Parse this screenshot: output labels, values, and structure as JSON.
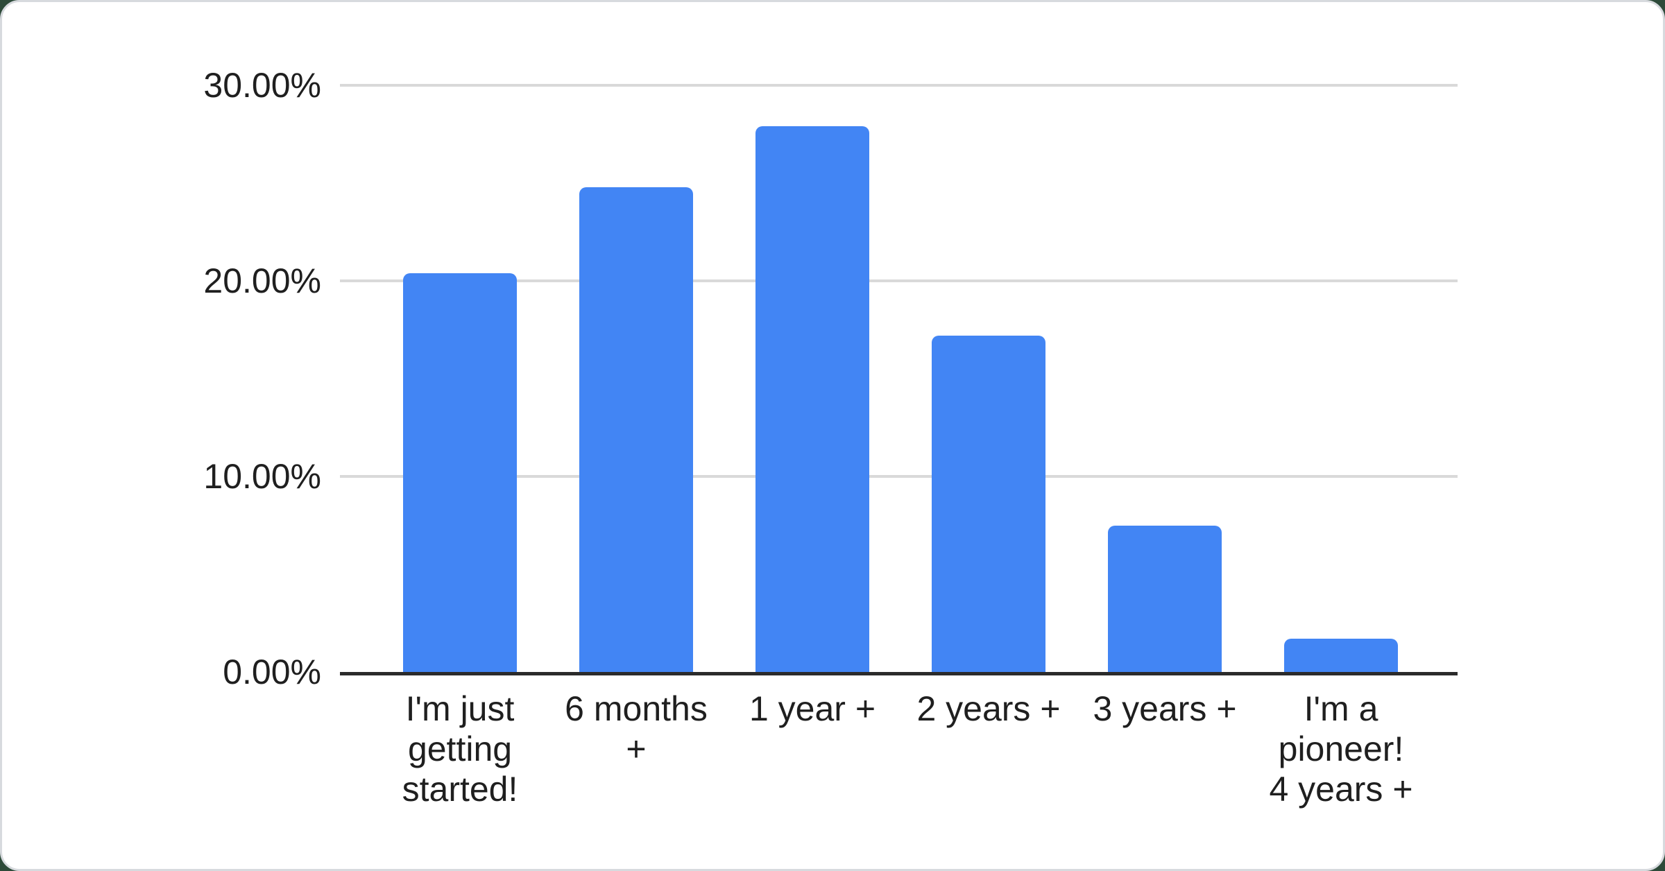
{
  "chart_data": {
    "type": "bar",
    "title": "",
    "xlabel": "",
    "ylabel": "",
    "categories": [
      "I'm just getting started!",
      "6 months +",
      "1 year +",
      "2 years +",
      "3 years +",
      "I'm a pioneer! 4 years +"
    ],
    "category_lines": [
      [
        "I'm just",
        "getting",
        "started!"
      ],
      [
        "6 months",
        "+"
      ],
      [
        "1 year +"
      ],
      [
        "2 years +"
      ],
      [
        "3 years +"
      ],
      [
        "I'm a",
        "pioneer!",
        "4 years +"
      ]
    ],
    "values": [
      20.4,
      24.8,
      27.9,
      17.2,
      7.5,
      1.7
    ],
    "value_unit": "%",
    "ylim": [
      0,
      30
    ],
    "yticks": [
      {
        "value": 0,
        "label": "0.00%"
      },
      {
        "value": 10,
        "label": "10.00%"
      },
      {
        "value": 20,
        "label": "20.00%"
      },
      {
        "value": 30,
        "label": "30.00%"
      }
    ],
    "grid": true,
    "legend": "none"
  },
  "colors": {
    "bar": "#4285f4",
    "gridline": "#d9d9d9",
    "axis_line": "#2b2b2b",
    "text": "#1f1f1f",
    "card_background": "#ffffff",
    "card_border": "#d7dade",
    "page_background": "#2d4a39"
  }
}
